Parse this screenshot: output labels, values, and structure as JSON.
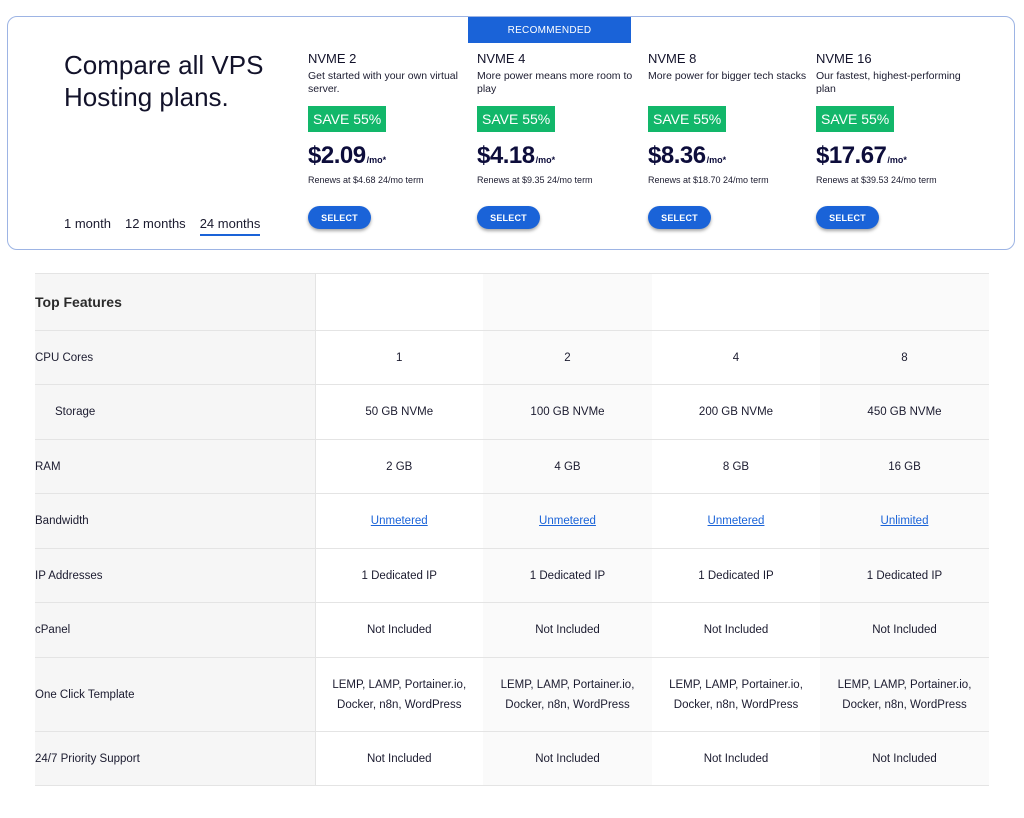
{
  "title": "Compare all VPS Hosting plans.",
  "recommended_label": "RECOMMENDED",
  "terms": [
    "1 month",
    "12 months",
    "24 months"
  ],
  "active_term": "24 months",
  "plans": [
    {
      "name": "NVME 2",
      "desc": "Get started with your own virtual server.",
      "save": "SAVE 55%",
      "price": "$2.09",
      "suffix": "/mo*",
      "renew": "Renews at $4.68 24/mo term",
      "select": "SELECT"
    },
    {
      "name": "NVME 4",
      "desc": "More power means more room to play",
      "save": "SAVE 55%",
      "price": "$4.18",
      "suffix": "/mo*",
      "renew": "Renews at $9.35 24/mo term",
      "select": "SELECT"
    },
    {
      "name": "NVME 8",
      "desc": "More power for bigger tech stacks",
      "save": "SAVE 55%",
      "price": "$8.36",
      "suffix": "/mo*",
      "renew": "Renews at $18.70 24/mo term",
      "select": "SELECT"
    },
    {
      "name": "NVME 16",
      "desc": "Our fastest, highest-performing plan",
      "save": "SAVE 55%",
      "price": "$17.67",
      "suffix": "/mo*",
      "renew": "Renews at $39.53 24/mo term",
      "select": "SELECT"
    }
  ],
  "features": {
    "heading": "Top Features",
    "rows": [
      {
        "label": "CPU Cores",
        "values": [
          "1",
          "2",
          "4",
          "8"
        ]
      },
      {
        "label": "Storage",
        "values": [
          "50 GB NVMe",
          "100 GB NVMe",
          "200 GB NVMe",
          "450 GB NVMe"
        ]
      },
      {
        "label": "RAM",
        "values": [
          "2 GB",
          "4 GB",
          "8 GB",
          "16 GB"
        ]
      },
      {
        "label": "Bandwidth",
        "values": [
          "Unmetered",
          "Unmetered",
          "Unmetered",
          "Unlimited"
        ]
      },
      {
        "label": "IP Addresses",
        "values": [
          "1 Dedicated IP",
          "1 Dedicated IP",
          "1 Dedicated IP",
          "1 Dedicated IP"
        ]
      },
      {
        "label": "cPanel",
        "values": [
          "Not Included",
          "Not Included",
          "Not Included",
          "Not Included"
        ]
      },
      {
        "label": "One Click Template",
        "values": [
          "LEMP, LAMP, Portainer.io, Docker, n8n, WordPress",
          "LEMP, LAMP, Portainer.io, Docker, n8n, WordPress",
          "LEMP, LAMP, Portainer.io, Docker, n8n, WordPress",
          "LEMP, LAMP, Portainer.io, Docker, n8n, WordPress"
        ]
      },
      {
        "label": "24/7 Priority Support",
        "values": [
          "Not Included",
          "Not Included",
          "Not Included",
          "Not Included"
        ]
      }
    ]
  },
  "colors": {
    "accent": "#1a63d8",
    "save_green": "#12b76a",
    "price": "#0d0d3b"
  }
}
